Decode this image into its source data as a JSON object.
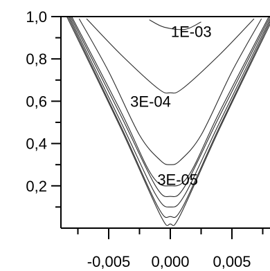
{
  "chart_data": {
    "type": "line",
    "title": "",
    "xlabel": "",
    "ylabel": "",
    "xlim": [
      -0.0085,
      0.0085
    ],
    "ylim": [
      0.0,
      1.0
    ],
    "x_ticks": [
      {
        "value": -0.005,
        "label": "-0,005"
      },
      {
        "value": 0.0,
        "label": "0,000"
      },
      {
        "value": 0.005,
        "label": "0,005"
      }
    ],
    "x_minor_ticks": [
      -0.0075,
      -0.0025,
      0.0025,
      0.0075
    ],
    "y_ticks": [
      {
        "value": 0.2,
        "label": "0,2"
      },
      {
        "value": 0.4,
        "label": "0,4"
      },
      {
        "value": 0.6,
        "label": "0,6"
      },
      {
        "value": 0.8,
        "label": "0,8"
      },
      {
        "value": 1.0,
        "label": "1,0"
      }
    ],
    "y_minor_ticks": [
      0.1,
      0.3,
      0.5,
      0.7,
      0.9
    ],
    "grid": false,
    "series": [
      {
        "label": "3E-05",
        "label_at": [
          0.0006,
          0.23
        ],
        "points": [
          [
            -0.0082,
            1.0
          ],
          [
            -0.004,
            0.5
          ],
          [
            -0.0012,
            0.16
          ],
          [
            0.0,
            0.1
          ],
          [
            0.0012,
            0.16
          ],
          [
            0.004,
            0.5
          ],
          [
            0.0082,
            1.0
          ]
        ]
      },
      {
        "points": [
          [
            -0.0083,
            1.0
          ],
          [
            -0.004,
            0.48
          ],
          [
            -0.001,
            0.1
          ],
          [
            0.0,
            0.055
          ],
          [
            0.001,
            0.1
          ],
          [
            0.004,
            0.48
          ],
          [
            0.0083,
            1.0
          ]
        ]
      },
      {
        "points": [
          [
            -0.0081,
            1.0
          ],
          [
            -0.004,
            0.53
          ],
          [
            -0.0012,
            0.2
          ],
          [
            0.0,
            0.15
          ],
          [
            0.0012,
            0.2
          ],
          [
            0.004,
            0.53
          ],
          [
            0.0081,
            1.0
          ]
        ]
      },
      {
        "points": [
          [
            -0.008,
            1.0
          ],
          [
            -0.004,
            0.55
          ],
          [
            -0.0015,
            0.25
          ],
          [
            0.0,
            0.2
          ],
          [
            0.0015,
            0.25
          ],
          [
            0.004,
            0.55
          ],
          [
            0.008,
            1.0
          ]
        ]
      },
      {
        "points": [
          [
            -0.0084,
            1.0
          ],
          [
            -0.004,
            0.47
          ],
          [
            -0.0008,
            0.06
          ],
          [
            0.0,
            0.02
          ],
          [
            0.0008,
            0.06
          ],
          [
            0.004,
            0.47
          ],
          [
            0.0084,
            1.0
          ]
        ]
      },
      {
        "label": "3E-04",
        "label_at": [
          -0.0016,
          0.6
        ],
        "points": [
          [
            -0.0074,
            0.99
          ],
          [
            -0.005,
            0.74
          ],
          [
            -0.0025,
            0.44
          ],
          [
            -0.0008,
            0.32
          ],
          [
            0.0,
            0.3
          ],
          [
            0.0008,
            0.32
          ],
          [
            0.0025,
            0.44
          ],
          [
            0.005,
            0.74
          ],
          [
            0.0074,
            0.99
          ]
        ]
      },
      {
        "points": [
          [
            -0.0068,
            0.99
          ],
          [
            -0.004,
            0.82
          ],
          [
            -0.001,
            0.66
          ],
          [
            0.0,
            0.64
          ],
          [
            0.001,
            0.66
          ],
          [
            0.004,
            0.82
          ],
          [
            0.0068,
            0.99
          ]
        ]
      },
      {
        "label": "1E-03",
        "label_at": [
          0.0017,
          0.93
        ],
        "points": [
          [
            -0.0017,
            0.985
          ],
          [
            -0.0005,
            0.95
          ],
          [
            0.0012,
            0.94
          ],
          [
            0.0025,
            0.975
          ]
        ]
      }
    ]
  }
}
